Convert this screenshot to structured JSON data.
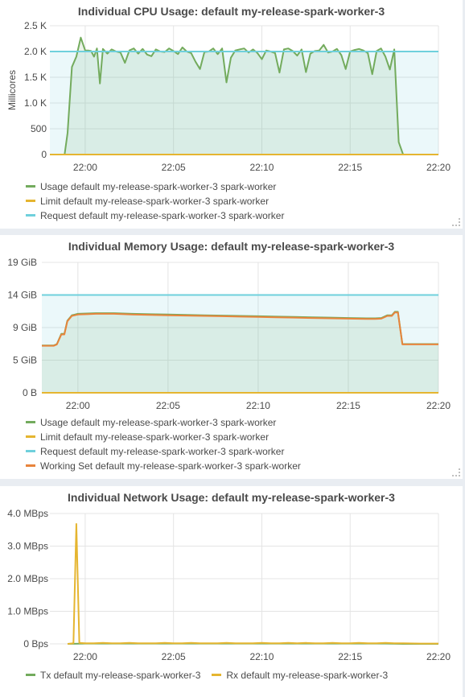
{
  "panels": [
    {
      "title": "Individual CPU Usage: default my-release-spark-worker-3",
      "legend": [
        {
          "label": "Usage default my-release-spark-worker-3 spark-worker",
          "color": "#73ab5d"
        },
        {
          "label": "Limit default my-release-spark-worker-3 spark-worker",
          "color": "#e5b530"
        },
        {
          "label": "Request default my-release-spark-worker-3 spark-worker",
          "color": "#6fd0dc"
        }
      ]
    },
    {
      "title": "Individual Memory Usage: default my-release-spark-worker-3",
      "legend": [
        {
          "label": "Usage default my-release-spark-worker-3 spark-worker",
          "color": "#73ab5d"
        },
        {
          "label": "Limit default my-release-spark-worker-3 spark-worker",
          "color": "#e5b530"
        },
        {
          "label": "Request default my-release-spark-worker-3 spark-worker",
          "color": "#6fd0dc"
        },
        {
          "label": "Working Set default my-release-spark-worker-3 spark-worker",
          "color": "#e8843c"
        }
      ]
    },
    {
      "title": "Individual Network Usage: default my-release-spark-worker-3",
      "legend": [
        {
          "label": "Tx default my-release-spark-worker-3",
          "color": "#73ab5d"
        },
        {
          "label": "Rx default my-release-spark-worker-3",
          "color": "#e5b530"
        }
      ]
    }
  ],
  "chart_data": [
    {
      "type": "line",
      "title": "Individual CPU Usage: default my-release-spark-worker-3",
      "ylabel": "Millicores",
      "xlim": [
        "21:58",
        "22:20"
      ],
      "ylim": [
        0,
        2500
      ],
      "x_ticks": [
        "22:00",
        "22:05",
        "22:10",
        "22:15",
        "22:20"
      ],
      "y_ticks": [
        {
          "label": "0",
          "value": 0
        },
        {
          "label": "500",
          "value": 500
        },
        {
          "label": "1.0 K",
          "value": 1000
        },
        {
          "label": "1.5 K",
          "value": 1500
        },
        {
          "label": "2.0 K",
          "value": 2000
        },
        {
          "label": "2.5 K",
          "value": 2500
        }
      ],
      "grid": true,
      "legend_position": "bottom",
      "series": [
        {
          "name": "Usage default my-release-spark-worker-3 spark-worker",
          "color": "#73ab5d",
          "fill": true,
          "x": [
            "21:58:50",
            "21:59:00",
            "21:59:15",
            "21:59:30",
            "21:59:45",
            "22:00:00",
            "22:00:10",
            "22:00:20",
            "22:00:30",
            "22:00:40",
            "22:00:50",
            "22:01:00",
            "22:01:15",
            "22:01:30",
            "22:01:45",
            "22:02:00",
            "22:02:15",
            "22:02:30",
            "22:02:45",
            "22:03:00",
            "22:03:15",
            "22:03:30",
            "22:03:45",
            "22:04:00",
            "22:04:15",
            "22:04:30",
            "22:04:45",
            "22:05:00",
            "22:05:15",
            "22:05:30",
            "22:05:45",
            "22:06:00",
            "22:06:15",
            "22:06:30",
            "22:06:45",
            "22:07:00",
            "22:07:15",
            "22:07:30",
            "22:07:45",
            "22:08:00",
            "22:08:15",
            "22:08:30",
            "22:08:45",
            "22:09:00",
            "22:09:15",
            "22:09:30",
            "22:09:45",
            "22:10:00",
            "22:10:15",
            "22:10:30",
            "22:10:45",
            "22:11:00",
            "22:11:15",
            "22:11:30",
            "22:11:45",
            "22:12:00",
            "22:12:15",
            "22:12:30",
            "22:12:45",
            "22:13:00",
            "22:13:15",
            "22:13:30",
            "22:13:45",
            "22:14:00",
            "22:14:15",
            "22:14:30",
            "22:14:45",
            "22:15:00",
            "22:15:15",
            "22:15:30",
            "22:15:45",
            "22:16:00",
            "22:16:15",
            "22:16:30",
            "22:16:45",
            "22:17:00",
            "22:17:15",
            "22:17:30",
            "22:17:45",
            "22:18:00"
          ],
          "values": [
            0,
            420,
            1700,
            1900,
            2270,
            2020,
            2020,
            2010,
            1900,
            2060,
            1380,
            2050,
            1960,
            2040,
            2000,
            1980,
            1780,
            2020,
            2060,
            1960,
            2050,
            1940,
            1910,
            2040,
            2000,
            1990,
            2060,
            2010,
            1950,
            2080,
            2000,
            1970,
            1800,
            1660,
            1990,
            2000,
            2060,
            1950,
            2060,
            1400,
            1880,
            2020,
            2040,
            2060,
            1980,
            2040,
            1970,
            1850,
            2020,
            2000,
            1970,
            1590,
            2040,
            2060,
            2010,
            1920,
            2040,
            1600,
            1960,
            2010,
            2020,
            2130,
            1980,
            2000,
            2050,
            1930,
            1660,
            2000,
            2030,
            2050,
            2020,
            1970,
            1560,
            2010,
            2060,
            1900,
            1650,
            2040,
            240,
            0
          ]
        },
        {
          "name": "Limit default my-release-spark-worker-3 spark-worker",
          "color": "#e5b530",
          "fill": false,
          "x": [
            "21:58:00",
            "22:20:00"
          ],
          "values": [
            0,
            0
          ]
        },
        {
          "name": "Request default my-release-spark-worker-3 spark-worker",
          "color": "#6fd0dc",
          "fill": true,
          "x": [
            "21:58:00",
            "22:20:00"
          ],
          "values": [
            2000,
            2000
          ]
        }
      ]
    },
    {
      "type": "line",
      "title": "Individual Memory Usage: default my-release-spark-worker-3",
      "xlim": [
        "21:58",
        "22:20"
      ],
      "ylim": [
        0,
        19
      ],
      "x_ticks": [
        "22:00",
        "22:05",
        "22:10",
        "22:15",
        "22:20"
      ],
      "y_ticks": [
        {
          "label": "0 B",
          "value": 0
        },
        {
          "label": "5 GiB",
          "value": 4.75
        },
        {
          "label": "9 GiB",
          "value": 9.5
        },
        {
          "label": "14 GiB",
          "value": 14.25
        },
        {
          "label": "19 GiB",
          "value": 19
        }
      ],
      "grid": true,
      "legend_position": "bottom",
      "series": [
        {
          "name": "Usage default my-release-spark-worker-3 spark-worker",
          "color": "#73ab5d",
          "fill": true,
          "x": [
            "21:58:00",
            "21:58:40",
            "21:58:50",
            "21:59:05",
            "21:59:15",
            "21:59:25",
            "21:59:40",
            "21:59:50",
            "22:00:00",
            "22:00:30",
            "22:01:00",
            "22:02:00",
            "22:03:00",
            "22:04:00",
            "22:05:00",
            "22:06:00",
            "22:07:00",
            "22:08:00",
            "22:09:00",
            "22:10:00",
            "22:11:00",
            "22:12:00",
            "22:13:00",
            "22:14:00",
            "22:15:00",
            "22:16:00",
            "22:16:30",
            "22:16:50",
            "22:17:10",
            "22:17:25",
            "22:17:35",
            "22:17:45",
            "22:18:00",
            "22:20:00"
          ],
          "values": [
            6.9,
            6.9,
            7.1,
            8.6,
            8.6,
            10.5,
            11.3,
            11.4,
            11.5,
            11.55,
            11.6,
            11.6,
            11.5,
            11.45,
            11.4,
            11.35,
            11.3,
            11.25,
            11.2,
            11.15,
            11.1,
            11.05,
            11.0,
            10.95,
            10.9,
            10.85,
            10.85,
            10.9,
            11.3,
            11.3,
            11.8,
            11.8,
            7.1,
            7.1
          ]
        },
        {
          "name": "Limit default my-release-spark-worker-3 spark-worker",
          "color": "#e5b530",
          "fill": false,
          "x": [
            "21:58:00",
            "22:20:00"
          ],
          "values": [
            0,
            0
          ]
        },
        {
          "name": "Request default my-release-spark-worker-3 spark-worker",
          "color": "#6fd0dc",
          "fill": true,
          "x": [
            "21:58:00",
            "22:20:00"
          ],
          "values": [
            14.25,
            14.25
          ]
        },
        {
          "name": "Working Set default my-release-spark-worker-3 spark-worker",
          "color": "#e8843c",
          "fill": false,
          "x": [
            "21:58:00",
            "21:58:40",
            "21:58:50",
            "21:59:05",
            "21:59:15",
            "21:59:25",
            "21:59:40",
            "21:59:50",
            "22:00:00",
            "22:00:30",
            "22:01:00",
            "22:02:00",
            "22:03:00",
            "22:04:00",
            "22:05:00",
            "22:06:00",
            "22:07:00",
            "22:08:00",
            "22:09:00",
            "22:10:00",
            "22:11:00",
            "22:12:00",
            "22:13:00",
            "22:14:00",
            "22:15:00",
            "22:16:00",
            "22:16:30",
            "22:16:50",
            "22:17:10",
            "22:17:25",
            "22:17:35",
            "22:17:45",
            "22:18:00",
            "22:20:00"
          ],
          "values": [
            6.85,
            6.85,
            7.05,
            8.5,
            8.5,
            10.4,
            11.2,
            11.3,
            11.4,
            11.45,
            11.5,
            11.5,
            11.4,
            11.35,
            11.3,
            11.25,
            11.2,
            11.15,
            11.1,
            11.05,
            11.0,
            10.95,
            10.9,
            10.85,
            10.8,
            10.75,
            10.75,
            10.8,
            11.2,
            11.2,
            11.7,
            11.7,
            7.05,
            7.05
          ]
        }
      ]
    },
    {
      "type": "line",
      "title": "Individual Network Usage: default my-release-spark-worker-3",
      "xlim": [
        "21:58",
        "22:20"
      ],
      "ylim": [
        0,
        4.0
      ],
      "x_ticks": [
        "22:00",
        "22:05",
        "22:10",
        "22:15",
        "22:20"
      ],
      "y_ticks": [
        {
          "label": "0 Bps",
          "value": 0
        },
        {
          "label": "1.0 MBps",
          "value": 1.0
        },
        {
          "label": "2.0 MBps",
          "value": 2.0
        },
        {
          "label": "3.0 MBps",
          "value": 3.0
        },
        {
          "label": "4.0 MBps",
          "value": 4.0
        }
      ],
      "grid": true,
      "legend_position": "bottom",
      "series": [
        {
          "name": "Tx default my-release-spark-worker-3",
          "color": "#73ab5d",
          "fill": false,
          "x": [
            "21:59:00",
            "22:00:00",
            "22:01:00",
            "22:02:00",
            "22:03:00",
            "22:04:00",
            "22:05:00",
            "22:06:00",
            "22:07:00",
            "22:08:00",
            "22:09:00",
            "22:10:00",
            "22:11:00",
            "22:12:00",
            "22:13:00",
            "22:14:00",
            "22:15:00",
            "22:16:00",
            "22:17:00",
            "22:18:00",
            "22:19:00",
            "22:20:00"
          ],
          "values": [
            0.0,
            0.01,
            0.01,
            0.01,
            0.01,
            0.01,
            0.01,
            0.01,
            0.01,
            0.01,
            0.01,
            0.01,
            0.01,
            0.01,
            0.01,
            0.01,
            0.01,
            0.01,
            0.01,
            0.0,
            0.0,
            0.0
          ]
        },
        {
          "name": "Rx default my-release-spark-worker-3",
          "color": "#e5b530",
          "fill": false,
          "x": [
            "21:59:00",
            "21:59:20",
            "21:59:30",
            "21:59:40",
            "22:00:00",
            "22:00:30",
            "22:01:00",
            "22:01:30",
            "22:02:00",
            "22:02:30",
            "22:03:00",
            "22:03:30",
            "22:04:00",
            "22:04:30",
            "22:05:00",
            "22:05:30",
            "22:06:00",
            "22:06:30",
            "22:07:00",
            "22:07:30",
            "22:08:00",
            "22:08:30",
            "22:09:00",
            "22:09:30",
            "22:10:00",
            "22:10:30",
            "22:11:00",
            "22:11:30",
            "22:12:00",
            "22:12:30",
            "22:13:00",
            "22:13:30",
            "22:14:00",
            "22:14:30",
            "22:15:00",
            "22:15:30",
            "22:16:00",
            "22:16:30",
            "22:17:00",
            "22:17:30",
            "22:18:00",
            "22:19:00",
            "22:20:00"
          ],
          "values": [
            0.0,
            0.02,
            3.68,
            0.03,
            0.02,
            0.02,
            0.03,
            0.02,
            0.02,
            0.03,
            0.02,
            0.02,
            0.02,
            0.03,
            0.02,
            0.02,
            0.03,
            0.02,
            0.02,
            0.02,
            0.03,
            0.02,
            0.02,
            0.02,
            0.03,
            0.02,
            0.02,
            0.03,
            0.02,
            0.03,
            0.02,
            0.02,
            0.03,
            0.02,
            0.02,
            0.03,
            0.02,
            0.02,
            0.03,
            0.02,
            0.02,
            0.01,
            0.01
          ]
        }
      ]
    }
  ]
}
